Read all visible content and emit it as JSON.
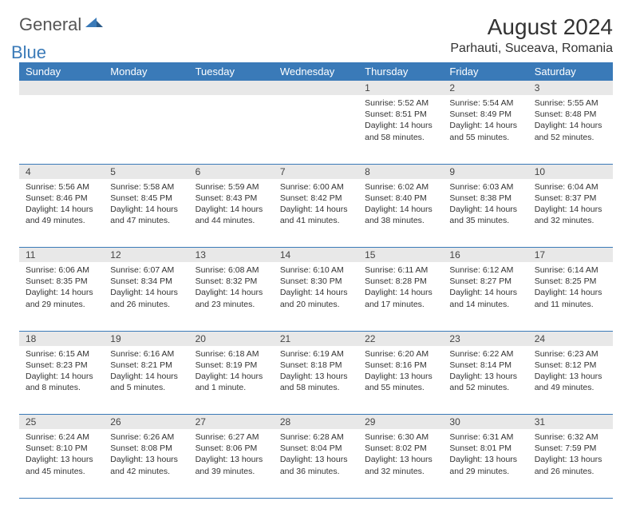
{
  "brand": {
    "general": "General",
    "blue": "Blue"
  },
  "title": "August 2024",
  "location": "Parhauti, Suceava, Romania",
  "colors": {
    "header_bg": "#3a7ab8",
    "header_fg": "#ffffff",
    "daynum_bg": "#e8e8e8",
    "border": "#3a7ab8",
    "text": "#333333",
    "logo_gray": "#555555",
    "logo_blue": "#3a7ab8"
  },
  "weekdays": [
    "Sunday",
    "Monday",
    "Tuesday",
    "Wednesday",
    "Thursday",
    "Friday",
    "Saturday"
  ],
  "weeks": [
    [
      null,
      null,
      null,
      null,
      {
        "n": "1",
        "sr": "5:52 AM",
        "ss": "8:51 PM",
        "dl": "14 hours and 58 minutes."
      },
      {
        "n": "2",
        "sr": "5:54 AM",
        "ss": "8:49 PM",
        "dl": "14 hours and 55 minutes."
      },
      {
        "n": "3",
        "sr": "5:55 AM",
        "ss": "8:48 PM",
        "dl": "14 hours and 52 minutes."
      }
    ],
    [
      {
        "n": "4",
        "sr": "5:56 AM",
        "ss": "8:46 PM",
        "dl": "14 hours and 49 minutes."
      },
      {
        "n": "5",
        "sr": "5:58 AM",
        "ss": "8:45 PM",
        "dl": "14 hours and 47 minutes."
      },
      {
        "n": "6",
        "sr": "5:59 AM",
        "ss": "8:43 PM",
        "dl": "14 hours and 44 minutes."
      },
      {
        "n": "7",
        "sr": "6:00 AM",
        "ss": "8:42 PM",
        "dl": "14 hours and 41 minutes."
      },
      {
        "n": "8",
        "sr": "6:02 AM",
        "ss": "8:40 PM",
        "dl": "14 hours and 38 minutes."
      },
      {
        "n": "9",
        "sr": "6:03 AM",
        "ss": "8:38 PM",
        "dl": "14 hours and 35 minutes."
      },
      {
        "n": "10",
        "sr": "6:04 AM",
        "ss": "8:37 PM",
        "dl": "14 hours and 32 minutes."
      }
    ],
    [
      {
        "n": "11",
        "sr": "6:06 AM",
        "ss": "8:35 PM",
        "dl": "14 hours and 29 minutes."
      },
      {
        "n": "12",
        "sr": "6:07 AM",
        "ss": "8:34 PM",
        "dl": "14 hours and 26 minutes."
      },
      {
        "n": "13",
        "sr": "6:08 AM",
        "ss": "8:32 PM",
        "dl": "14 hours and 23 minutes."
      },
      {
        "n": "14",
        "sr": "6:10 AM",
        "ss": "8:30 PM",
        "dl": "14 hours and 20 minutes."
      },
      {
        "n": "15",
        "sr": "6:11 AM",
        "ss": "8:28 PM",
        "dl": "14 hours and 17 minutes."
      },
      {
        "n": "16",
        "sr": "6:12 AM",
        "ss": "8:27 PM",
        "dl": "14 hours and 14 minutes."
      },
      {
        "n": "17",
        "sr": "6:14 AM",
        "ss": "8:25 PM",
        "dl": "14 hours and 11 minutes."
      }
    ],
    [
      {
        "n": "18",
        "sr": "6:15 AM",
        "ss": "8:23 PM",
        "dl": "14 hours and 8 minutes."
      },
      {
        "n": "19",
        "sr": "6:16 AM",
        "ss": "8:21 PM",
        "dl": "14 hours and 5 minutes."
      },
      {
        "n": "20",
        "sr": "6:18 AM",
        "ss": "8:19 PM",
        "dl": "14 hours and 1 minute."
      },
      {
        "n": "21",
        "sr": "6:19 AM",
        "ss": "8:18 PM",
        "dl": "13 hours and 58 minutes."
      },
      {
        "n": "22",
        "sr": "6:20 AM",
        "ss": "8:16 PM",
        "dl": "13 hours and 55 minutes."
      },
      {
        "n": "23",
        "sr": "6:22 AM",
        "ss": "8:14 PM",
        "dl": "13 hours and 52 minutes."
      },
      {
        "n": "24",
        "sr": "6:23 AM",
        "ss": "8:12 PM",
        "dl": "13 hours and 49 minutes."
      }
    ],
    [
      {
        "n": "25",
        "sr": "6:24 AM",
        "ss": "8:10 PM",
        "dl": "13 hours and 45 minutes."
      },
      {
        "n": "26",
        "sr": "6:26 AM",
        "ss": "8:08 PM",
        "dl": "13 hours and 42 minutes."
      },
      {
        "n": "27",
        "sr": "6:27 AM",
        "ss": "8:06 PM",
        "dl": "13 hours and 39 minutes."
      },
      {
        "n": "28",
        "sr": "6:28 AM",
        "ss": "8:04 PM",
        "dl": "13 hours and 36 minutes."
      },
      {
        "n": "29",
        "sr": "6:30 AM",
        "ss": "8:02 PM",
        "dl": "13 hours and 32 minutes."
      },
      {
        "n": "30",
        "sr": "6:31 AM",
        "ss": "8:01 PM",
        "dl": "13 hours and 29 minutes."
      },
      {
        "n": "31",
        "sr": "6:32 AM",
        "ss": "7:59 PM",
        "dl": "13 hours and 26 minutes."
      }
    ]
  ],
  "labels": {
    "sunrise": "Sunrise:",
    "sunset": "Sunset:",
    "daylight": "Daylight:"
  }
}
